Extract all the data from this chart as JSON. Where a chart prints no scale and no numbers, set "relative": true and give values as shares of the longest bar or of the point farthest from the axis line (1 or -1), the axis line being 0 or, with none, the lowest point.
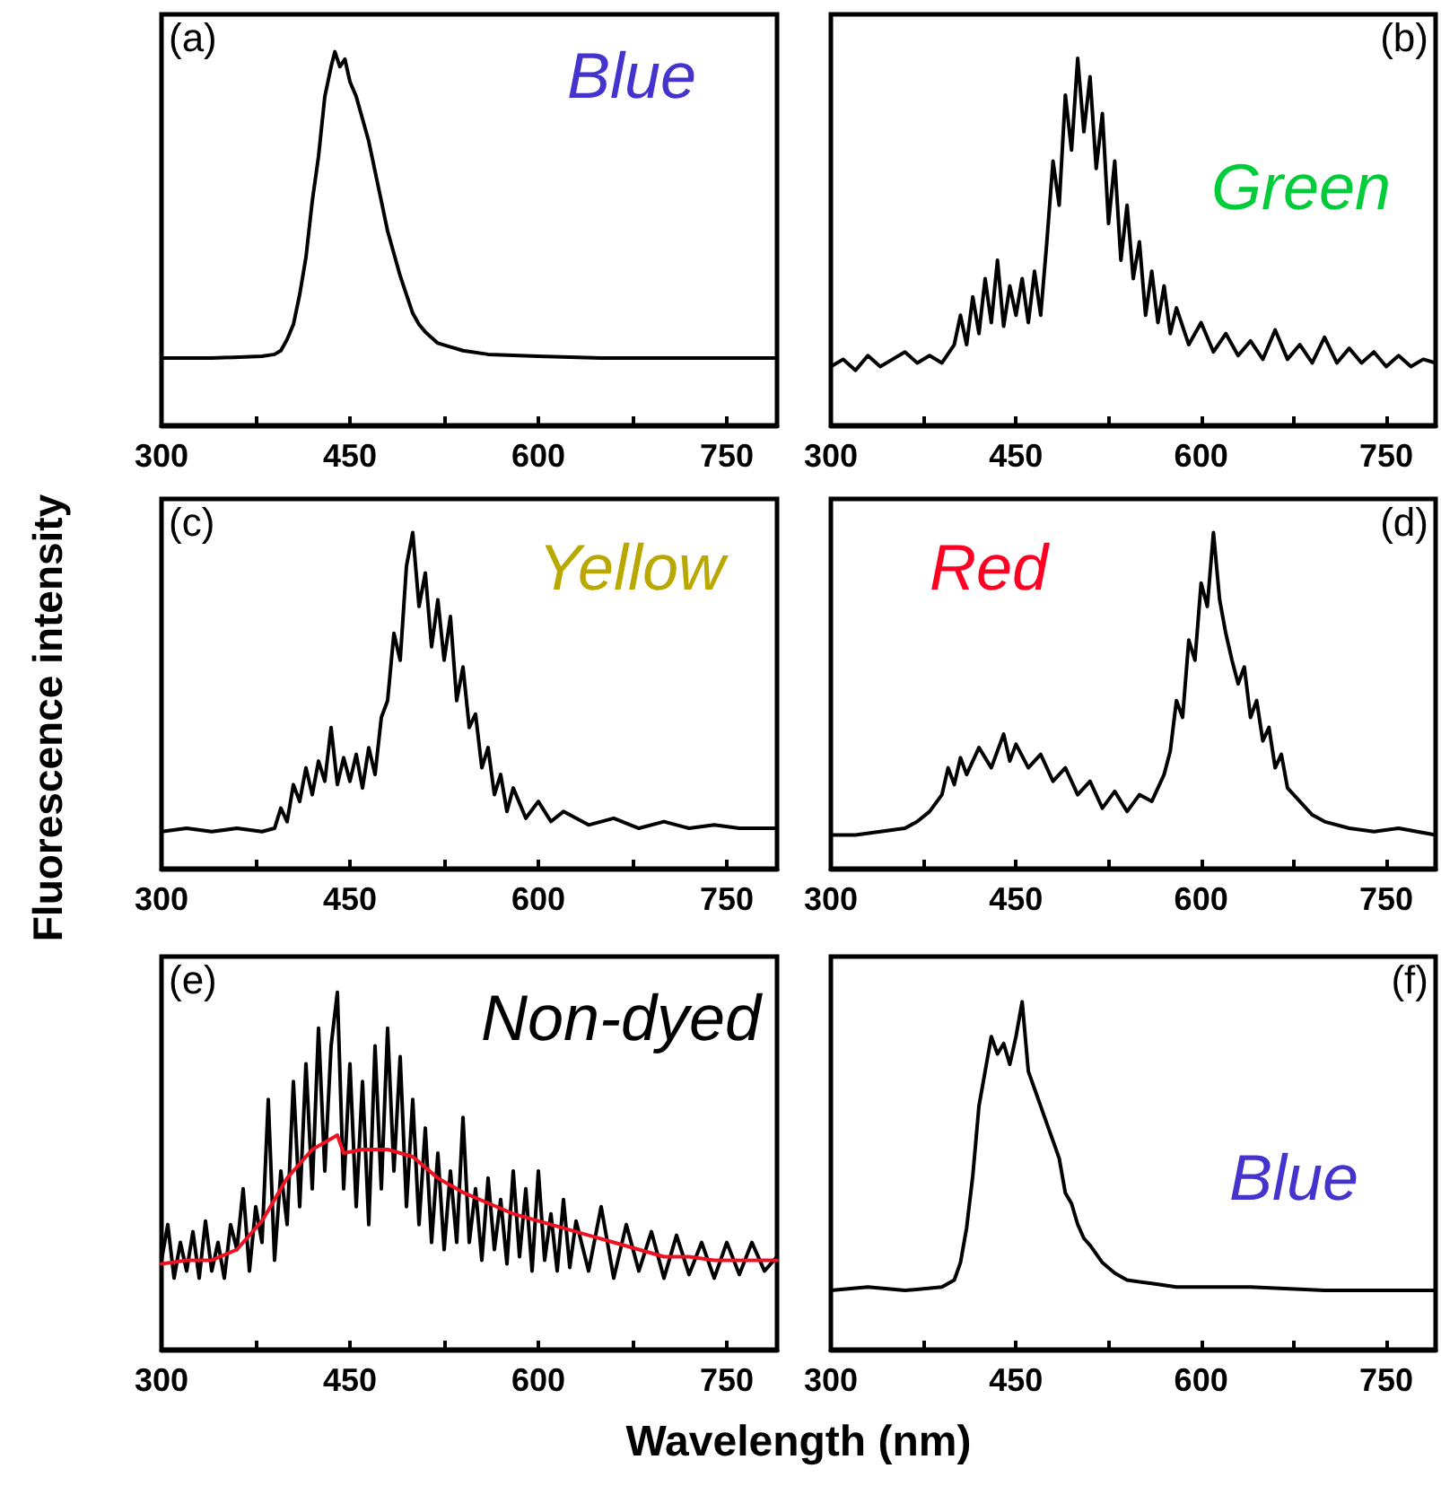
{
  "chart_data": [
    {
      "type": "line",
      "relative": true,
      "xlim": [
        300,
        790
      ],
      "xticks": [
        300,
        {
          "value": 375,
          "label": null
        },
        450,
        {
          "value": 525,
          "label": null
        },
        600,
        {
          "value": 675,
          "label": null
        },
        750
      ],
      "tick_labels": "x",
      "annotations": [
        "(a)",
        "Blue"
      ],
      "series": [
        {
          "color": "#000000",
          "x": [
            300,
            340,
            380,
            390,
            395,
            400,
            405,
            410,
            415,
            420,
            425,
            430,
            435,
            438,
            442,
            446,
            450,
            455,
            460,
            465,
            470,
            475,
            480,
            485,
            490,
            495,
            500,
            505,
            510,
            520,
            530,
            540,
            560,
            600,
            650,
            700,
            750,
            790
          ],
          "values": [
            0.18,
            0.18,
            0.185,
            0.19,
            0.2,
            0.23,
            0.27,
            0.35,
            0.45,
            0.6,
            0.72,
            0.88,
            0.96,
            1.0,
            0.96,
            0.98,
            0.92,
            0.88,
            0.82,
            0.76,
            0.68,
            0.6,
            0.52,
            0.46,
            0.4,
            0.35,
            0.3,
            0.27,
            0.25,
            0.22,
            0.21,
            0.2,
            0.19,
            0.185,
            0.18,
            0.18,
            0.18,
            0.18
          ]
        }
      ]
    },
    {
      "type": "line",
      "relative": true,
      "xlim": [
        300,
        790
      ],
      "xticks": [
        300,
        {
          "value": 375,
          "label": null
        },
        450,
        {
          "value": 525,
          "label": null
        },
        600,
        {
          "value": 675,
          "label": null
        },
        750
      ],
      "tick_labels": "x",
      "annotations": [
        "(b)",
        "Green"
      ],
      "series": [
        {
          "color": "#000000",
          "x": [
            300,
            310,
            320,
            330,
            340,
            350,
            360,
            370,
            380,
            390,
            400,
            405,
            410,
            415,
            420,
            425,
            430,
            435,
            440,
            445,
            450,
            455,
            460,
            465,
            470,
            475,
            480,
            485,
            490,
            495,
            500,
            505,
            510,
            515,
            520,
            525,
            530,
            535,
            540,
            545,
            550,
            555,
            560,
            565,
            570,
            575,
            580,
            590,
            600,
            610,
            620,
            630,
            640,
            650,
            660,
            670,
            680,
            690,
            700,
            710,
            720,
            730,
            740,
            750,
            760,
            770,
            780,
            790
          ],
          "values": [
            0.16,
            0.18,
            0.15,
            0.19,
            0.16,
            0.18,
            0.2,
            0.17,
            0.19,
            0.17,
            0.22,
            0.3,
            0.22,
            0.35,
            0.25,
            0.4,
            0.28,
            0.45,
            0.27,
            0.38,
            0.3,
            0.4,
            0.28,
            0.42,
            0.3,
            0.5,
            0.72,
            0.6,
            0.9,
            0.75,
            1.0,
            0.8,
            0.95,
            0.7,
            0.85,
            0.55,
            0.72,
            0.45,
            0.6,
            0.4,
            0.5,
            0.3,
            0.42,
            0.28,
            0.38,
            0.25,
            0.32,
            0.22,
            0.28,
            0.2,
            0.25,
            0.19,
            0.23,
            0.18,
            0.26,
            0.18,
            0.22,
            0.17,
            0.24,
            0.17,
            0.21,
            0.17,
            0.2,
            0.16,
            0.19,
            0.16,
            0.18,
            0.17
          ]
        }
      ]
    },
    {
      "type": "line",
      "relative": true,
      "xlim": [
        300,
        790
      ],
      "xticks": [
        300,
        {
          "value": 375,
          "label": null
        },
        450,
        {
          "value": 525,
          "label": null
        },
        600,
        {
          "value": 675,
          "label": null
        },
        750
      ],
      "tick_labels": "x",
      "ylabel": "Fluorescence intensity",
      "annotations": [
        "(c)",
        "Yellow"
      ],
      "series": [
        {
          "color": "#000000",
          "x": [
            300,
            320,
            340,
            360,
            380,
            390,
            395,
            400,
            405,
            410,
            415,
            420,
            425,
            430,
            435,
            440,
            445,
            450,
            455,
            460,
            465,
            470,
            475,
            480,
            485,
            490,
            495,
            500,
            505,
            510,
            515,
            520,
            525,
            530,
            535,
            540,
            545,
            550,
            555,
            560,
            565,
            570,
            575,
            580,
            590,
            600,
            610,
            620,
            640,
            660,
            680,
            700,
            720,
            740,
            760,
            790
          ],
          "values": [
            0.11,
            0.12,
            0.11,
            0.12,
            0.11,
            0.12,
            0.18,
            0.14,
            0.25,
            0.2,
            0.3,
            0.22,
            0.32,
            0.26,
            0.42,
            0.25,
            0.33,
            0.26,
            0.34,
            0.24,
            0.36,
            0.28,
            0.45,
            0.5,
            0.7,
            0.62,
            0.9,
            1.0,
            0.78,
            0.88,
            0.66,
            0.8,
            0.62,
            0.75,
            0.5,
            0.6,
            0.42,
            0.46,
            0.3,
            0.36,
            0.22,
            0.28,
            0.17,
            0.24,
            0.15,
            0.2,
            0.14,
            0.17,
            0.13,
            0.15,
            0.12,
            0.14,
            0.12,
            0.13,
            0.12,
            0.12
          ]
        }
      ]
    },
    {
      "type": "line",
      "relative": true,
      "xlim": [
        300,
        790
      ],
      "xticks": [
        300,
        {
          "value": 375,
          "label": null
        },
        450,
        {
          "value": 525,
          "label": null
        },
        600,
        {
          "value": 675,
          "label": null
        },
        750
      ],
      "tick_labels": "x",
      "annotations": [
        "(d)",
        "Red"
      ],
      "series": [
        {
          "color": "#000000",
          "x": [
            300,
            320,
            340,
            360,
            370,
            380,
            390,
            395,
            400,
            405,
            410,
            420,
            430,
            440,
            445,
            450,
            460,
            470,
            480,
            490,
            500,
            510,
            520,
            530,
            540,
            550,
            560,
            570,
            575,
            580,
            585,
            590,
            595,
            600,
            605,
            610,
            615,
            620,
            625,
            630,
            635,
            640,
            645,
            650,
            655,
            660,
            665,
            670,
            680,
            690,
            700,
            720,
            740,
            760,
            790
          ],
          "values": [
            0.1,
            0.1,
            0.11,
            0.12,
            0.14,
            0.17,
            0.22,
            0.3,
            0.25,
            0.33,
            0.28,
            0.36,
            0.3,
            0.4,
            0.32,
            0.37,
            0.3,
            0.34,
            0.26,
            0.3,
            0.22,
            0.26,
            0.18,
            0.23,
            0.17,
            0.22,
            0.2,
            0.28,
            0.35,
            0.5,
            0.45,
            0.68,
            0.62,
            0.85,
            0.78,
            1.0,
            0.8,
            0.7,
            0.62,
            0.55,
            0.6,
            0.45,
            0.5,
            0.38,
            0.42,
            0.3,
            0.34,
            0.24,
            0.2,
            0.16,
            0.14,
            0.12,
            0.11,
            0.12,
            0.1
          ]
        }
      ]
    },
    {
      "type": "line",
      "relative": true,
      "xlim": [
        300,
        790
      ],
      "xticks": [
        300,
        {
          "value": 375,
          "label": null
        },
        450,
        {
          "value": 525,
          "label": null
        },
        600,
        {
          "value": 675,
          "label": null
        },
        750
      ],
      "tick_labels": "x",
      "xlabel": "Wavelength (nm)",
      "annotations": [
        "(e)",
        "Non-dyed"
      ],
      "series": [
        {
          "color": "#000000",
          "x": [
            300,
            305,
            310,
            315,
            320,
            325,
            330,
            335,
            340,
            345,
            350,
            355,
            360,
            365,
            370,
            375,
            380,
            385,
            390,
            395,
            400,
            405,
            410,
            415,
            420,
            425,
            430,
            435,
            440,
            445,
            450,
            455,
            460,
            465,
            470,
            475,
            480,
            485,
            490,
            495,
            500,
            505,
            510,
            515,
            520,
            525,
            530,
            535,
            540,
            545,
            550,
            555,
            560,
            565,
            570,
            575,
            580,
            585,
            590,
            595,
            600,
            605,
            610,
            615,
            620,
            625,
            630,
            640,
            650,
            660,
            670,
            680,
            690,
            700,
            710,
            720,
            730,
            740,
            750,
            760,
            770,
            780,
            790
          ],
          "values": [
            0.25,
            0.35,
            0.2,
            0.3,
            0.22,
            0.33,
            0.2,
            0.36,
            0.22,
            0.3,
            0.2,
            0.35,
            0.28,
            0.45,
            0.22,
            0.4,
            0.3,
            0.7,
            0.25,
            0.5,
            0.35,
            0.75,
            0.4,
            0.8,
            0.45,
            0.9,
            0.5,
            0.85,
            1.0,
            0.45,
            0.8,
            0.4,
            0.75,
            0.35,
            0.85,
            0.45,
            0.9,
            0.5,
            0.82,
            0.4,
            0.7,
            0.35,
            0.62,
            0.3,
            0.55,
            0.28,
            0.5,
            0.3,
            0.65,
            0.3,
            0.45,
            0.25,
            0.48,
            0.28,
            0.42,
            0.24,
            0.5,
            0.26,
            0.45,
            0.22,
            0.5,
            0.25,
            0.38,
            0.22,
            0.42,
            0.23,
            0.36,
            0.22,
            0.4,
            0.2,
            0.35,
            0.22,
            0.33,
            0.2,
            0.32,
            0.21,
            0.3,
            0.2,
            0.3,
            0.21,
            0.3,
            0.22,
            0.26
          ]
        },
        {
          "color": "#ee1122",
          "x": [
            300,
            320,
            340,
            360,
            380,
            400,
            420,
            440,
            445,
            460,
            480,
            500,
            520,
            540,
            560,
            580,
            600,
            620,
            640,
            660,
            680,
            700,
            720,
            740,
            760,
            790
          ],
          "values": [
            0.24,
            0.25,
            0.25,
            0.28,
            0.36,
            0.48,
            0.56,
            0.6,
            0.55,
            0.56,
            0.56,
            0.54,
            0.48,
            0.44,
            0.41,
            0.38,
            0.36,
            0.34,
            0.32,
            0.3,
            0.28,
            0.26,
            0.26,
            0.25,
            0.25,
            0.25
          ]
        }
      ]
    },
    {
      "type": "line",
      "relative": true,
      "xlim": [
        300,
        790
      ],
      "xticks": [
        300,
        {
          "value": 375,
          "label": null
        },
        450,
        {
          "value": 525,
          "label": null
        },
        600,
        {
          "value": 675,
          "label": null
        },
        750
      ],
      "tick_labels": "x",
      "annotations": [
        "(f)",
        "Blue"
      ],
      "series": [
        {
          "color": "#000000",
          "x": [
            300,
            330,
            360,
            390,
            400,
            405,
            410,
            415,
            420,
            425,
            430,
            435,
            440,
            445,
            450,
            455,
            460,
            465,
            470,
            475,
            480,
            485,
            490,
            495,
            500,
            505,
            510,
            520,
            530,
            540,
            560,
            580,
            600,
            640,
            700,
            750,
            790
          ],
          "values": [
            0.17,
            0.18,
            0.17,
            0.18,
            0.2,
            0.25,
            0.35,
            0.5,
            0.7,
            0.8,
            0.9,
            0.85,
            0.88,
            0.82,
            0.9,
            1.0,
            0.8,
            0.75,
            0.7,
            0.65,
            0.6,
            0.55,
            0.45,
            0.42,
            0.36,
            0.32,
            0.3,
            0.25,
            0.22,
            0.2,
            0.19,
            0.18,
            0.18,
            0.18,
            0.17,
            0.17,
            0.17
          ]
        }
      ]
    }
  ]
}
